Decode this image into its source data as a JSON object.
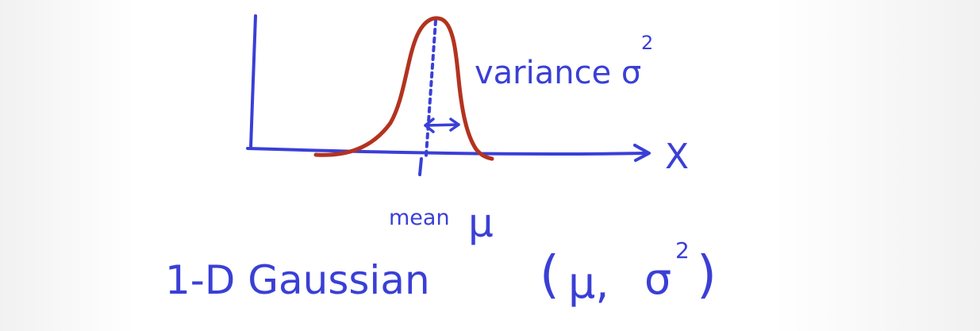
{
  "labels": {
    "variance": "variance σ",
    "variance_exp": "2",
    "axis_x": "X",
    "mean": "mean",
    "mu": "μ",
    "title": "1-D Gaussian",
    "params_open": "(",
    "params_mu": "μ,",
    "params_sigma": "σ",
    "params_exp": "2",
    "params_close": ")"
  },
  "colors": {
    "axis_ink": "#3a3fd6",
    "curve_ink": "#b3331f"
  }
}
